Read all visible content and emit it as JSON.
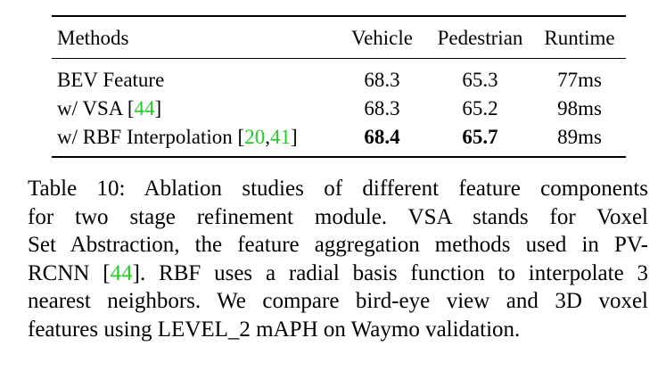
{
  "table": {
    "headers": [
      "Methods",
      "Vehicle",
      "Pedestrian",
      "Runtime"
    ],
    "rows": [
      {
        "method": "BEV Feature",
        "refs": [],
        "vehicle": "68.3",
        "pedestrian": "65.3",
        "runtime": "77ms",
        "bold_vehicle": false,
        "bold_pedestrian": false
      },
      {
        "method": "w/ VSA",
        "refs": [
          "44"
        ],
        "vehicle": "68.3",
        "pedestrian": "65.2",
        "runtime": "98ms",
        "bold_vehicle": false,
        "bold_pedestrian": false
      },
      {
        "method": "w/ RBF Interpolation",
        "refs": [
          "20",
          "41"
        ],
        "vehicle": "68.4",
        "pedestrian": "65.7",
        "runtime": "89ms",
        "bold_vehicle": true,
        "bold_pedestrian": true
      }
    ]
  },
  "caption": {
    "label": "Table 10:",
    "line1": "Ablation studies of different feature components",
    "line2": "for two stage refinement module.  VSA stands for Voxel",
    "line3": "Set Abstraction, the feature aggregation methods used in PV-",
    "line4_a": "RCNN",
    "line4_ref": "44",
    "line4_b": ". RBF uses a radial basis function to interpolate 3",
    "line5": "nearest neighbors. We compare bird-eye view and 3D voxel",
    "line6": "features using LEVEL_2 mAPH on Waymo validation."
  },
  "colors": {
    "citation": "#22cc22",
    "text": "#000000"
  }
}
